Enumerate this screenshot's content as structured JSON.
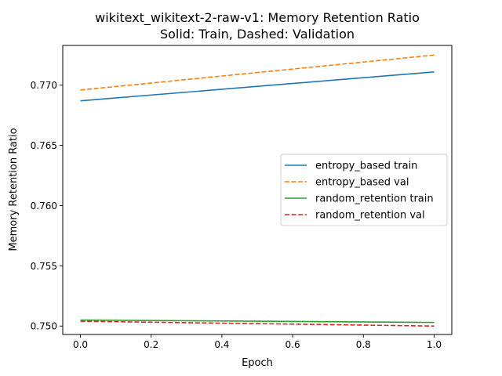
{
  "chart_data": {
    "type": "line",
    "title": "wikitext_wikitext-2-raw-v1: Memory Retention Ratio",
    "subtitle": "Solid: Train, Dashed: Validation",
    "xlabel": "Epoch",
    "ylabel": "Memory Retention Ratio",
    "xlim": [
      -0.05,
      1.05
    ],
    "ylim": [
      0.7493,
      0.7733
    ],
    "xticks": [
      0.0,
      0.2,
      0.4,
      0.6,
      0.8,
      1.0
    ],
    "xtick_labels": [
      "0.0",
      "0.2",
      "0.4",
      "0.6",
      "0.8",
      "1.0"
    ],
    "yticks": [
      0.75,
      0.755,
      0.76,
      0.765,
      0.77
    ],
    "ytick_labels": [
      "0.750",
      "0.755",
      "0.760",
      "0.765",
      "0.770"
    ],
    "grid": false,
    "legend_position": "center-right",
    "series": [
      {
        "name": "entropy_based train",
        "x": [
          0.0,
          1.0
        ],
        "y": [
          0.7687,
          0.7711
        ],
        "color": "#1f77b4",
        "style": "solid"
      },
      {
        "name": "entropy_based val",
        "x": [
          0.0,
          1.0
        ],
        "y": [
          0.7696,
          0.7725
        ],
        "color": "#ff7f0e",
        "style": "dashed"
      },
      {
        "name": "random_retention train",
        "x": [
          0.0,
          1.0
        ],
        "y": [
          0.7505,
          0.7503
        ],
        "color": "#2ca02c",
        "style": "solid"
      },
      {
        "name": "random_retention val",
        "x": [
          0.0,
          1.0
        ],
        "y": [
          0.7504,
          0.75
        ],
        "color": "#d62728",
        "style": "dashed"
      }
    ]
  }
}
